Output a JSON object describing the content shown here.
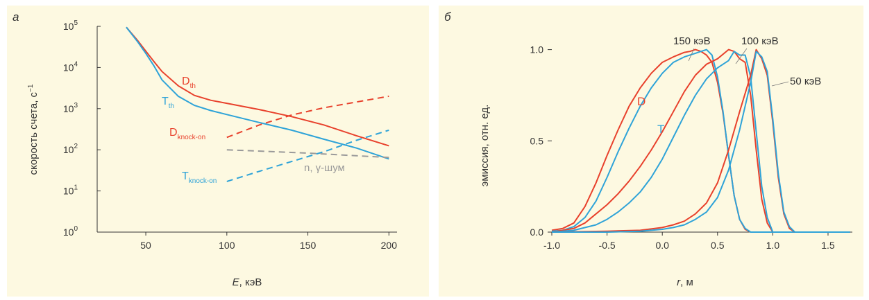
{
  "chart_data": [
    {
      "panel_label": "а",
      "type": "line",
      "xlabel_italic": "E",
      "xlabel_unit": ", кэВ",
      "ylabel": "скорость счета, с",
      "ylabel_sup": "−1",
      "yscale": "log",
      "xlim": [
        20,
        205
      ],
      "ylim": [
        1,
        100000
      ],
      "xticks": [
        50,
        100,
        150,
        200
      ],
      "yticks": [
        {
          "base": "10",
          "exp": "0",
          "value": 1
        },
        {
          "base": "10",
          "exp": "1",
          "value": 10
        },
        {
          "base": "10",
          "exp": "2",
          "value": 100
        },
        {
          "base": "10",
          "exp": "3",
          "value": 1000
        },
        {
          "base": "10",
          "exp": "4",
          "value": 10000
        },
        {
          "base": "10",
          "exp": "5",
          "value": 100000
        }
      ],
      "series": [
        {
          "label_main": "D",
          "label_sub": "th",
          "color": "#e8412c",
          "dash": false,
          "points": [
            [
              38,
              95000
            ],
            [
              45,
              45000
            ],
            [
              50,
              25000
            ],
            [
              55,
              14000
            ],
            [
              60,
              8000
            ],
            [
              70,
              3600
            ],
            [
              80,
              2100
            ],
            [
              90,
              1600
            ],
            [
              100,
              1350
            ],
            [
              120,
              950
            ],
            [
              140,
              640
            ],
            [
              160,
              400
            ],
            [
              180,
              220
            ],
            [
              200,
              125
            ]
          ]
        },
        {
          "label_main": "T",
          "label_sub": "th",
          "color": "#2ea3d8",
          "dash": false,
          "points": [
            [
              38,
              95000
            ],
            [
              45,
              42000
            ],
            [
              50,
              22000
            ],
            [
              55,
              11000
            ],
            [
              60,
              5000
            ],
            [
              70,
              2000
            ],
            [
              80,
              1200
            ],
            [
              90,
              900
            ],
            [
              100,
              720
            ],
            [
              120,
              460
            ],
            [
              140,
              300
            ],
            [
              160,
              180
            ],
            [
              180,
              110
            ],
            [
              200,
              60
            ]
          ]
        },
        {
          "label_main": "D",
          "label_sub": "knock-on",
          "color": "#e8412c",
          "dash": true,
          "points": [
            [
              100,
              200
            ],
            [
              120,
              400
            ],
            [
              140,
              700
            ],
            [
              160,
              1050
            ],
            [
              180,
              1450
            ],
            [
              200,
              2000
            ]
          ]
        },
        {
          "label_main": "T",
          "label_sub": "knock-on",
          "color": "#2ea3d8",
          "dash": true,
          "points": [
            [
              100,
              17
            ],
            [
              120,
              30
            ],
            [
              140,
              52
            ],
            [
              160,
              90
            ],
            [
              180,
              170
            ],
            [
              200,
              300
            ]
          ]
        },
        {
          "label_main": "n, γ-шум",
          "label_sub": "",
          "color": "#9a9a9a",
          "dash": true,
          "points": [
            [
              100,
              100
            ],
            [
              150,
              83
            ],
            [
              200,
              65
            ]
          ]
        }
      ]
    },
    {
      "panel_label": "б",
      "type": "line",
      "xlabel_italic": "r",
      "xlabel_unit": ", м",
      "ylabel": "эмиссия, отн. ед.",
      "xlim": [
        -1.0,
        1.72
      ],
      "ylim": [
        0,
        1.12
      ],
      "xticks": [
        "-1.0",
        "-0.5",
        "0.0",
        "0.5",
        "1.0",
        "1.5"
      ],
      "yticks": [
        "0.0",
        "0.5",
        "1.0"
      ],
      "legend_text": {
        "D": "D",
        "T": "T"
      },
      "energy_labels": [
        "150 кэВ",
        "100 кэВ",
        "50 кэВ"
      ],
      "series": [
        {
          "name": "D",
          "energy": "150 кэВ",
          "color": "#e8412c",
          "points": [
            [
              -1.0,
              0.01
            ],
            [
              -0.9,
              0.02
            ],
            [
              -0.8,
              0.05
            ],
            [
              -0.7,
              0.14
            ],
            [
              -0.6,
              0.27
            ],
            [
              -0.5,
              0.42
            ],
            [
              -0.4,
              0.56
            ],
            [
              -0.3,
              0.69
            ],
            [
              -0.2,
              0.79
            ],
            [
              -0.1,
              0.87
            ],
            [
              0.0,
              0.93
            ],
            [
              0.1,
              0.96
            ],
            [
              0.2,
              0.985
            ],
            [
              0.25,
              0.99
            ],
            [
              0.3,
              1.0
            ],
            [
              0.35,
              0.99
            ],
            [
              0.4,
              0.97
            ],
            [
              0.45,
              0.93
            ],
            [
              0.5,
              0.82
            ],
            [
              0.55,
              0.65
            ],
            [
              0.6,
              0.42
            ],
            [
              0.65,
              0.2
            ],
            [
              0.7,
              0.07
            ],
            [
              0.75,
              0.015
            ],
            [
              0.8,
              0.0
            ],
            [
              1.7,
              0.0
            ]
          ]
        },
        {
          "name": "T",
          "energy": "150 кэВ",
          "color": "#2ea3d8",
          "points": [
            [
              -1.0,
              0.005
            ],
            [
              -0.9,
              0.01
            ],
            [
              -0.8,
              0.03
            ],
            [
              -0.7,
              0.08
            ],
            [
              -0.6,
              0.17
            ],
            [
              -0.5,
              0.3
            ],
            [
              -0.4,
              0.44
            ],
            [
              -0.3,
              0.57
            ],
            [
              -0.2,
              0.69
            ],
            [
              -0.1,
              0.79
            ],
            [
              0.0,
              0.87
            ],
            [
              0.1,
              0.93
            ],
            [
              0.2,
              0.96
            ],
            [
              0.3,
              0.98
            ],
            [
              0.35,
              0.99
            ],
            [
              0.4,
              1.0
            ],
            [
              0.45,
              0.97
            ],
            [
              0.5,
              0.85
            ],
            [
              0.55,
              0.66
            ],
            [
              0.6,
              0.42
            ],
            [
              0.65,
              0.2
            ],
            [
              0.7,
              0.07
            ],
            [
              0.75,
              0.02
            ],
            [
              0.8,
              0.0
            ],
            [
              1.7,
              0.0
            ]
          ]
        },
        {
          "name": "D",
          "energy": "100 кэВ",
          "color": "#e8412c",
          "points": [
            [
              -1.0,
              0.0
            ],
            [
              -0.8,
              0.02
            ],
            [
              -0.7,
              0.05
            ],
            [
              -0.6,
              0.1
            ],
            [
              -0.5,
              0.15
            ],
            [
              -0.4,
              0.21
            ],
            [
              -0.3,
              0.28
            ],
            [
              -0.2,
              0.36
            ],
            [
              -0.1,
              0.45
            ],
            [
              0.0,
              0.55
            ],
            [
              0.1,
              0.66
            ],
            [
              0.2,
              0.77
            ],
            [
              0.3,
              0.86
            ],
            [
              0.4,
              0.92
            ],
            [
              0.5,
              0.95
            ],
            [
              0.6,
              1.0
            ],
            [
              0.65,
              0.99
            ],
            [
              0.7,
              0.95
            ],
            [
              0.75,
              0.93
            ],
            [
              0.8,
              0.75
            ],
            [
              0.85,
              0.45
            ],
            [
              0.9,
              0.18
            ],
            [
              0.95,
              0.05
            ],
            [
              1.0,
              0.0
            ],
            [
              1.7,
              0.0
            ]
          ]
        },
        {
          "name": "T",
          "energy": "100 кэВ",
          "color": "#2ea3d8",
          "points": [
            [
              -1.0,
              0.0
            ],
            [
              -0.8,
              0.01
            ],
            [
              -0.6,
              0.04
            ],
            [
              -0.5,
              0.07
            ],
            [
              -0.4,
              0.11
            ],
            [
              -0.3,
              0.16
            ],
            [
              -0.2,
              0.22
            ],
            [
              -0.1,
              0.3
            ],
            [
              0.0,
              0.4
            ],
            [
              0.1,
              0.52
            ],
            [
              0.2,
              0.64
            ],
            [
              0.3,
              0.75
            ],
            [
              0.4,
              0.84
            ],
            [
              0.5,
              0.9
            ],
            [
              0.6,
              0.94
            ],
            [
              0.65,
              0.99
            ],
            [
              0.7,
              0.97
            ],
            [
              0.75,
              0.97
            ],
            [
              0.8,
              0.85
            ],
            [
              0.85,
              0.55
            ],
            [
              0.9,
              0.25
            ],
            [
              0.95,
              0.08
            ],
            [
              1.0,
              0.0
            ],
            [
              1.7,
              0.0
            ]
          ]
        },
        {
          "name": "D",
          "energy": "50 кэВ",
          "color": "#e8412c",
          "points": [
            [
              -1.0,
              0.0
            ],
            [
              -0.5,
              0.005
            ],
            [
              -0.2,
              0.01
            ],
            [
              0.0,
              0.025
            ],
            [
              0.1,
              0.04
            ],
            [
              0.2,
              0.06
            ],
            [
              0.3,
              0.1
            ],
            [
              0.4,
              0.16
            ],
            [
              0.5,
              0.27
            ],
            [
              0.6,
              0.45
            ],
            [
              0.7,
              0.66
            ],
            [
              0.8,
              0.86
            ],
            [
              0.85,
              1.0
            ],
            [
              0.9,
              0.95
            ],
            [
              0.95,
              0.86
            ],
            [
              1.0,
              0.6
            ],
            [
              1.05,
              0.3
            ],
            [
              1.1,
              0.1
            ],
            [
              1.15,
              0.02
            ],
            [
              1.2,
              0.0
            ],
            [
              1.7,
              0.0
            ]
          ]
        },
        {
          "name": "T",
          "energy": "50 кэВ",
          "color": "#2ea3d8",
          "points": [
            [
              -1.0,
              0.0
            ],
            [
              -0.5,
              0.0
            ],
            [
              -0.2,
              0.005
            ],
            [
              0.0,
              0.015
            ],
            [
              0.1,
              0.025
            ],
            [
              0.2,
              0.04
            ],
            [
              0.3,
              0.07
            ],
            [
              0.4,
              0.11
            ],
            [
              0.5,
              0.19
            ],
            [
              0.6,
              0.34
            ],
            [
              0.7,
              0.56
            ],
            [
              0.8,
              0.82
            ],
            [
              0.85,
              0.99
            ],
            [
              0.9,
              0.96
            ],
            [
              0.95,
              0.88
            ],
            [
              1.0,
              0.62
            ],
            [
              1.05,
              0.32
            ],
            [
              1.1,
              0.11
            ],
            [
              1.15,
              0.03
            ],
            [
              1.2,
              0.0
            ],
            [
              1.7,
              0.0
            ]
          ]
        }
      ]
    }
  ]
}
